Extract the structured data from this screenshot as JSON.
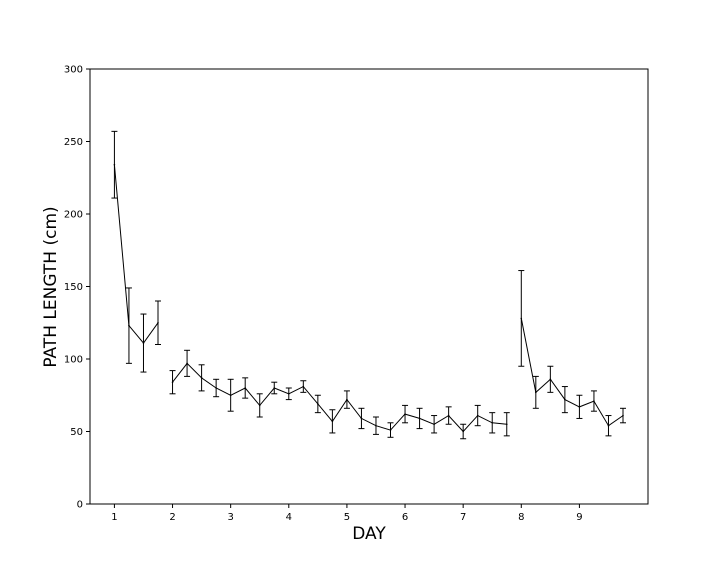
{
  "chart_data": {
    "type": "line",
    "title": "",
    "xlabel": "DAY",
    "ylabel": "PATH LENGTH (cm)",
    "xlim": [
      0.58,
      10.18
    ],
    "ylim": [
      0,
      300
    ],
    "xticks": [
      1,
      2,
      3,
      4,
      5,
      6,
      7,
      8,
      9
    ],
    "yticks": [
      0,
      50,
      100,
      150,
      200,
      250,
      300
    ],
    "grid": false,
    "segments": [
      {
        "x": [
          1.0,
          1.25,
          1.5,
          1.75
        ],
        "y": [
          234,
          123,
          111,
          125
        ],
        "err": [
          23,
          26,
          20,
          15
        ]
      },
      {
        "x": [
          2.0,
          2.25,
          2.5,
          2.75,
          3.0,
          3.25,
          3.5,
          3.75,
          4.0,
          4.25,
          4.5,
          4.75,
          5.0,
          5.25,
          5.5,
          5.75,
          6.0,
          6.25,
          6.5,
          6.75,
          7.0,
          7.25,
          7.5,
          7.75
        ],
        "y": [
          84,
          97,
          87,
          80,
          75,
          80,
          68,
          80,
          76,
          81,
          69,
          57,
          72,
          59,
          54,
          51,
          62,
          59,
          55,
          61,
          50,
          61,
          56,
          55
        ],
        "err": [
          8,
          9,
          9,
          6,
          11,
          7,
          8,
          4,
          4,
          4,
          6,
          8,
          6,
          7,
          6,
          5,
          6,
          7,
          6,
          6,
          5,
          7,
          7,
          8
        ]
      },
      {
        "x": [
          8.0,
          8.25,
          8.5,
          8.75,
          9.0,
          9.25,
          9.5,
          9.75
        ],
        "y": [
          128,
          77,
          86,
          72,
          67,
          71,
          54,
          61
        ],
        "err": [
          33,
          11,
          9,
          9,
          8,
          7,
          7,
          5
        ]
      }
    ]
  }
}
